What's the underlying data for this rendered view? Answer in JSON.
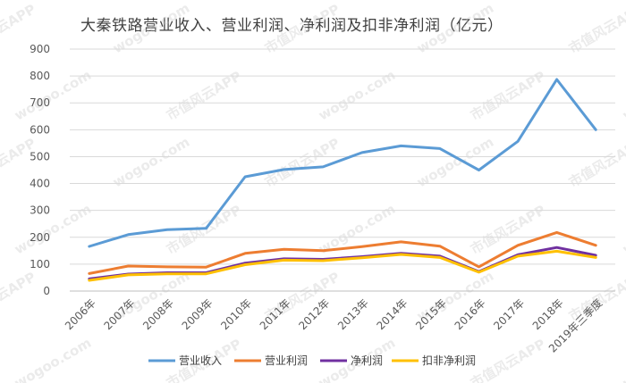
{
  "chart_data": {
    "type": "line",
    "title": "大秦铁路营业收入、营业利润、净利润及扣非净利润（亿元）",
    "categories": [
      "2006年",
      "2007年",
      "2008年",
      "2009年",
      "2010年",
      "2011年",
      "2012年",
      "2013年",
      "2014年",
      "2015年",
      "2016年",
      "2017年",
      "2018年",
      "2019年三季度"
    ],
    "ylim": [
      0,
      900
    ],
    "yticks": [
      0,
      100,
      200,
      300,
      400,
      500,
      600,
      700,
      800,
      900
    ],
    "grid": true,
    "legend_position": "bottom",
    "series": [
      {
        "name": "营业收入",
        "color": "#5b9bd5",
        "values": [
          166,
          210,
          228,
          233,
          425,
          452,
          462,
          515,
          540,
          530,
          450,
          557,
          787,
          600
        ]
      },
      {
        "name": "营业利润",
        "color": "#ed7d31",
        "values": [
          65,
          93,
          90,
          89,
          140,
          155,
          150,
          165,
          183,
          167,
          90,
          170,
          218,
          170
        ]
      },
      {
        "name": "净利润",
        "color": "#7030a0",
        "values": [
          45,
          63,
          68,
          68,
          104,
          120,
          118,
          128,
          140,
          130,
          72,
          135,
          162,
          133
        ]
      },
      {
        "name": "扣非净利润",
        "color": "#ffc000",
        "values": [
          40,
          60,
          64,
          64,
          98,
          115,
          113,
          124,
          136,
          125,
          70,
          130,
          148,
          125
        ]
      }
    ]
  },
  "watermark": {
    "text_cn": "市值风云APP",
    "text_url": "wogoo.com"
  }
}
